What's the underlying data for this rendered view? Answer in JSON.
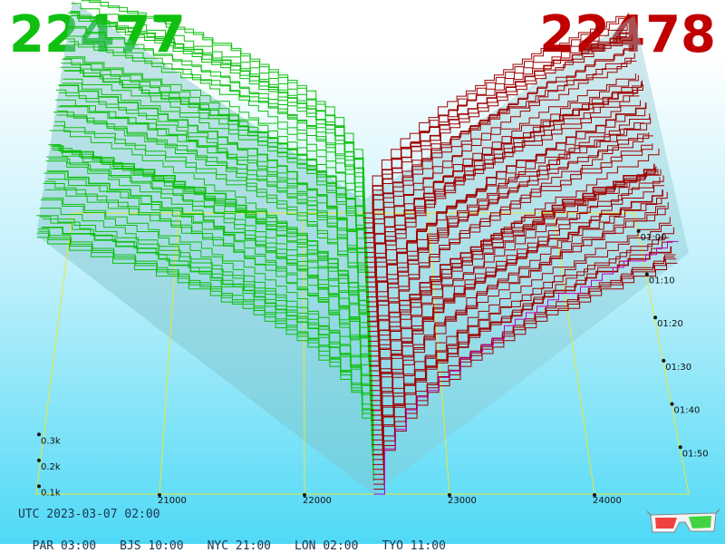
{
  "header": {
    "bid_price": "22477",
    "ask_price": "22478",
    "bid_color": "#10c010",
    "ask_color": "#c00000"
  },
  "footer": {
    "utc_time": "UTC 2023-03-07 02:00",
    "zones": [
      "PAR 03:00",
      "BJS 10:00",
      "NYC 21:00",
      "LON 02:00",
      "TYO 11:00"
    ]
  },
  "decoration": {
    "glasses_icon": "3d-glasses-icon"
  },
  "chart_data": {
    "type": "area",
    "x_ticks": [
      "21000",
      "22000",
      "23000",
      "24000"
    ],
    "x_tick_values": [
      21000,
      22000,
      23000,
      24000
    ],
    "xlim": [
      20150,
      24650
    ],
    "mid_price": 22477.5,
    "time_ticks": [
      "01:00",
      "01:10",
      "01:20",
      "01:30",
      "01:40",
      "01:50"
    ],
    "time_tick_minutes": [
      0,
      10,
      20,
      30,
      40,
      50
    ],
    "time_range_minutes": [
      -5,
      60
    ],
    "depth_ticks": [
      "0.1k",
      "0.2k",
      "0.3k"
    ],
    "depth_tick_values": [
      100,
      200,
      300
    ],
    "depth_max": 1050,
    "snapshots": 58,
    "bid_color": "#10c010",
    "ask_color": "#a00000",
    "latest_ask_color": "#c000c0",
    "grid": true
  }
}
